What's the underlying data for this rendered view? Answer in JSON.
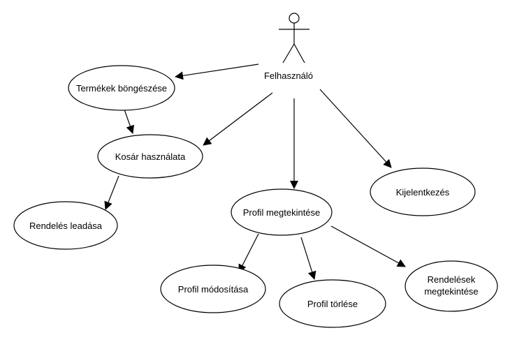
{
  "actor": {
    "label": "Felhasználó"
  },
  "use_cases": {
    "browse": "Termékek böngészése",
    "cart": "Kosár használata",
    "order": "Rendelés leadása",
    "profile_view": "Profil megtekintése",
    "profile_edit": "Profil módosítása",
    "profile_delete": "Profil törlése",
    "orders_view_line1": "Rendelések",
    "orders_view_line2": "megtekintése",
    "logout": "Kijelentkezés"
  },
  "relations": [
    [
      "actor",
      "browse"
    ],
    [
      "actor",
      "cart"
    ],
    [
      "actor",
      "profile_view"
    ],
    [
      "actor",
      "logout"
    ],
    [
      "browse",
      "cart"
    ],
    [
      "cart",
      "order"
    ],
    [
      "profile_view",
      "profile_edit"
    ],
    [
      "profile_view",
      "profile_delete"
    ],
    [
      "profile_view",
      "orders_view"
    ]
  ]
}
